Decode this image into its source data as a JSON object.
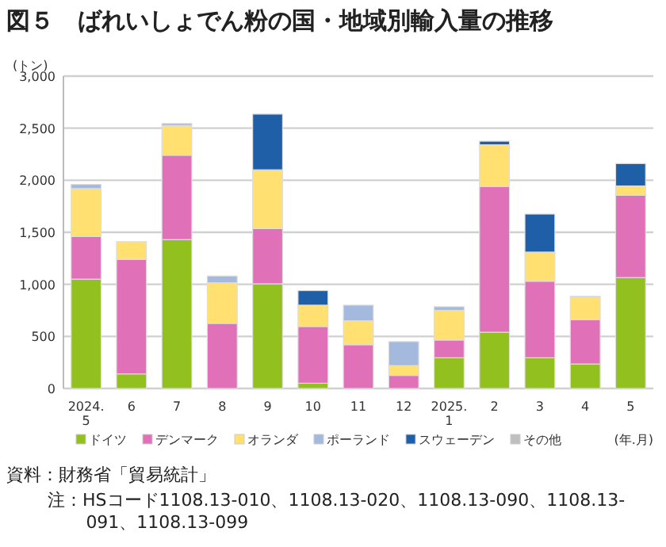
{
  "chart_data": {
    "type": "bar",
    "title": "図５　ばれいしょでん粉の国・地域別輸入量の推移",
    "ylabel": "(トン)",
    "xlabel": "(年.月)",
    "categories": [
      "2024.\n5",
      "6",
      "7",
      "8",
      "9",
      "10",
      "11",
      "12",
      "2025.\n1",
      "2",
      "3",
      "4",
      "5"
    ],
    "stacked": true,
    "ylim": [
      0,
      3000
    ],
    "yticks": [
      {
        "value": 0,
        "label": "0"
      },
      {
        "value": 500,
        "label": "500"
      },
      {
        "value": 1000,
        "label": "1,000"
      },
      {
        "value": 1500,
        "label": "1,500"
      },
      {
        "value": 2000,
        "label": "2,000"
      },
      {
        "value": 2500,
        "label": "2,500"
      },
      {
        "value": 3000,
        "label": "3,000"
      }
    ],
    "grid": "y",
    "legend": "bottom",
    "series": [
      {
        "name": "ドイツ",
        "color": "#92c01f",
        "values": [
          1050,
          140,
          1430,
          0,
          1005,
          50,
          0,
          0,
          295,
          540,
          295,
          235,
          1065
        ]
      },
      {
        "name": "デンマーク",
        "color": "#e070b8",
        "values": [
          410,
          1100,
          810,
          625,
          530,
          545,
          420,
          125,
          170,
          1400,
          735,
          425,
          790
        ]
      },
      {
        "name": "オランダ",
        "color": "#ffe070",
        "values": [
          460,
          170,
          285,
          390,
          565,
          205,
          230,
          95,
          285,
          400,
          280,
          215,
          90
        ]
      },
      {
        "name": "ポーランド",
        "color": "#a3b9de",
        "values": [
          40,
          0,
          20,
          65,
          0,
          0,
          150,
          230,
          35,
          0,
          0,
          10,
          0
        ]
      },
      {
        "name": "スウェーデン",
        "color": "#1f5fa8",
        "values": [
          0,
          0,
          0,
          0,
          535,
          140,
          0,
          0,
          0,
          35,
          365,
          0,
          215
        ]
      },
      {
        "name": "その他",
        "color": "#bfbfbf",
        "values": [
          0,
          0,
          0,
          0,
          0,
          0,
          0,
          0,
          0,
          0,
          0,
          0,
          0
        ]
      }
    ],
    "annotations": [
      "資料：財務省「貿易統計」",
      "注：HSコード1108.13-010、1108.13-020、1108.13-090、1108.13-091、1108.13-099"
    ]
  }
}
